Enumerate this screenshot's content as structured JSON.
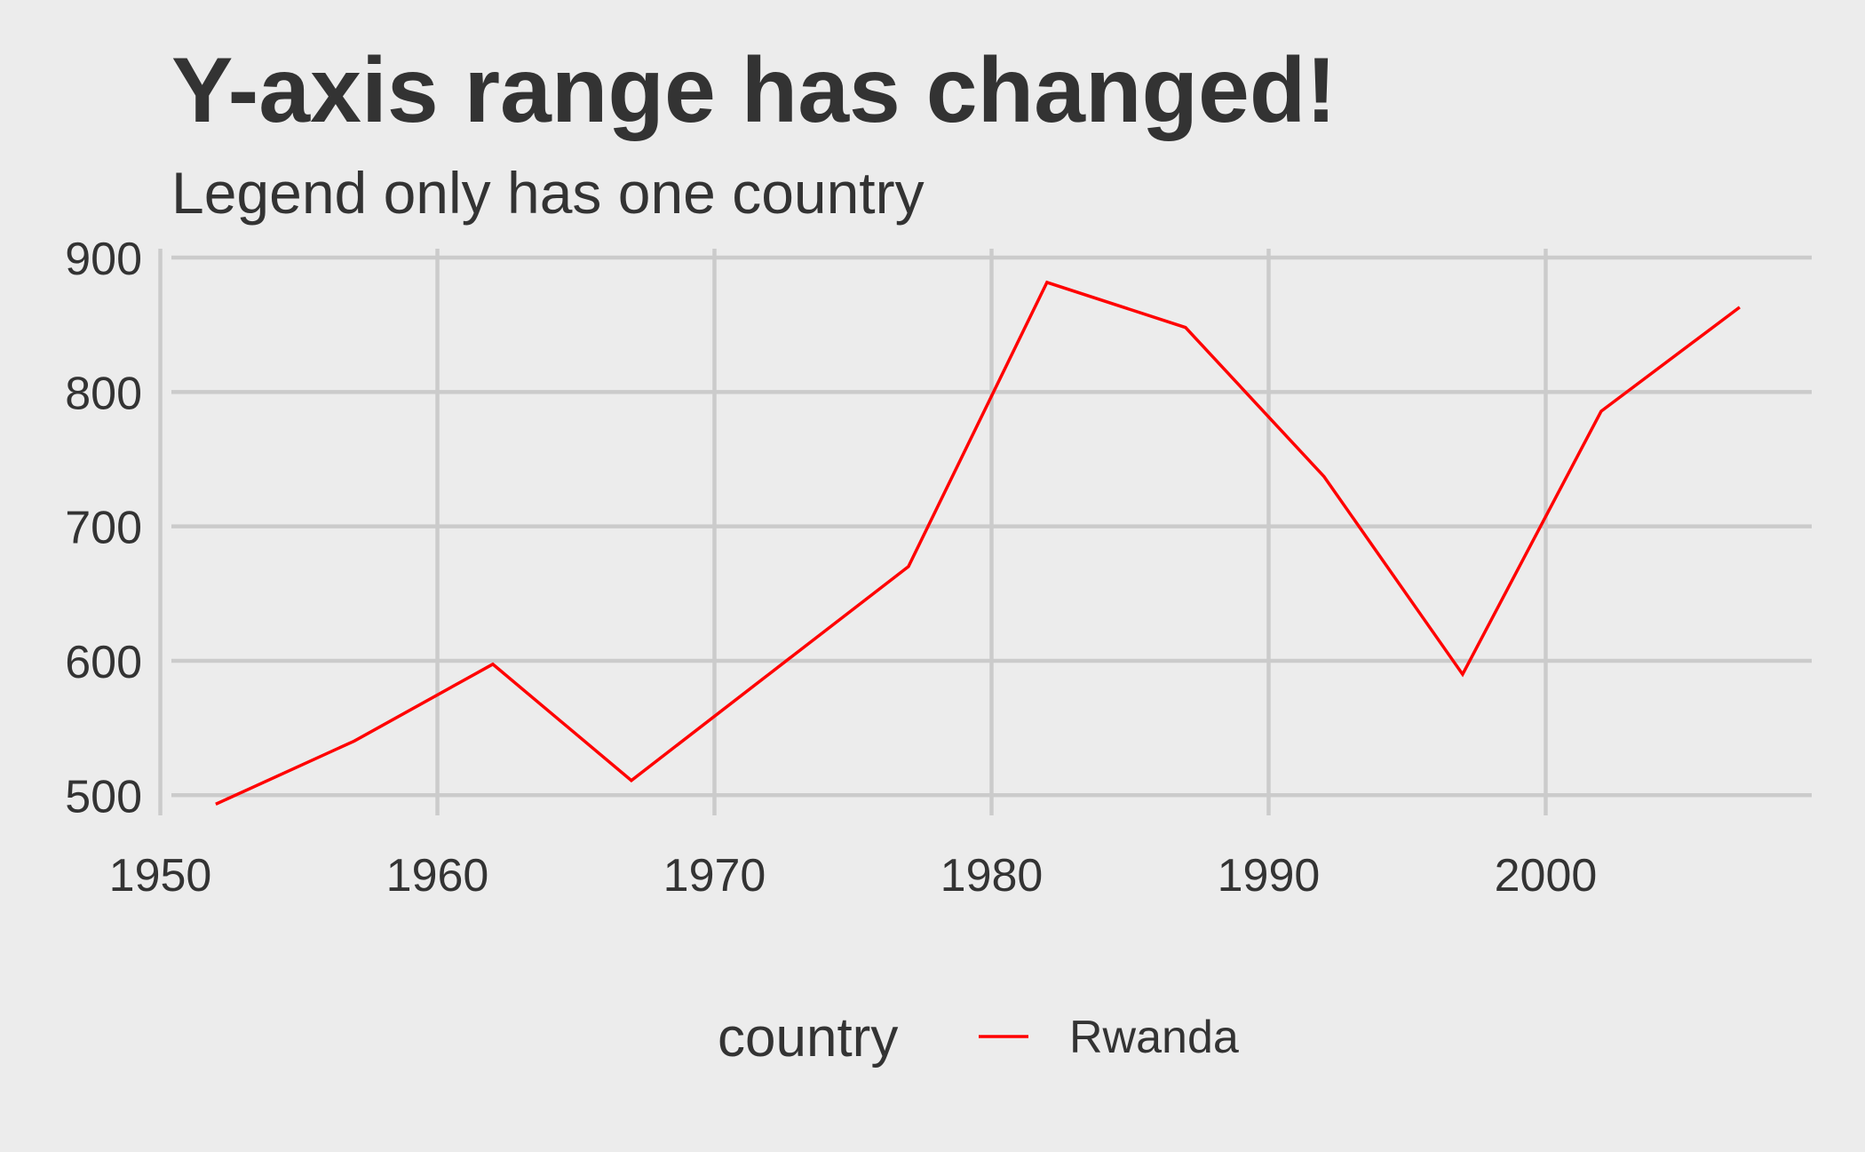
{
  "chart_data": {
    "type": "line",
    "title": "Y-axis range has changed!",
    "subtitle": "Legend only has one country",
    "xlabel": "",
    "ylabel": "",
    "xlim": [
      1950.4,
      2009.6
    ],
    "ylim": [
      485,
      900
    ],
    "x_ticks": [
      1950,
      1960,
      1970,
      1980,
      1990,
      2000
    ],
    "y_ticks": [
      500,
      600,
      700,
      800,
      900
    ],
    "grid": true,
    "legend": {
      "title": "country",
      "position": "bottom"
    },
    "series": [
      {
        "name": "Rwanda",
        "color": "#ff0000",
        "x": [
          1952,
          1957,
          1962,
          1967,
          1972,
          1977,
          1982,
          1987,
          1992,
          1997,
          2002,
          2007
        ],
        "values": [
          493.32,
          540.29,
          597.47,
          510.96,
          590.58,
          670.08,
          881.57,
          847.99,
          737.07,
          589.94,
          785.65,
          863.09
        ]
      }
    ]
  }
}
